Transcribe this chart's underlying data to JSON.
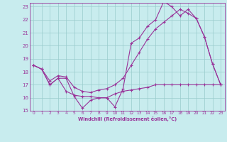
{
  "xlabel": "Windchill (Refroidissement éolien,°C)",
  "bg_color": "#c8ecee",
  "line_color": "#993399",
  "grid_color": "#99cccc",
  "xmin": 0,
  "xmax": 23,
  "ymin": 15,
  "ymax": 23,
  "line1_x": [
    0,
    1,
    2,
    3,
    4,
    5,
    6,
    7,
    8,
    9,
    10,
    11,
    12,
    13,
    14,
    15,
    16,
    17,
    18,
    19,
    20,
    21,
    22,
    23
  ],
  "line1_y": [
    18.5,
    18.2,
    17.0,
    17.5,
    17.5,
    16.1,
    15.2,
    15.8,
    16.0,
    16.0,
    15.3,
    16.7,
    20.2,
    20.6,
    21.5,
    22.0,
    23.4,
    23.0,
    22.3,
    22.8,
    22.1,
    20.7,
    18.6,
    17.0
  ],
  "line2_x": [
    0,
    1,
    2,
    3,
    4,
    5,
    6,
    7,
    8,
    9,
    10,
    11,
    12,
    13,
    14,
    15,
    16,
    17,
    18,
    19,
    20,
    21,
    22,
    23
  ],
  "line2_y": [
    18.5,
    18.2,
    17.3,
    17.7,
    17.6,
    16.8,
    16.5,
    16.4,
    16.6,
    16.7,
    17.0,
    17.5,
    18.5,
    19.5,
    20.5,
    21.3,
    21.8,
    22.3,
    22.8,
    22.5,
    22.1,
    20.7,
    18.6,
    17.0
  ],
  "line3_x": [
    0,
    1,
    2,
    3,
    4,
    5,
    6,
    7,
    8,
    9,
    10,
    11,
    12,
    13,
    14,
    15,
    16,
    17,
    18,
    19,
    20,
    21,
    22,
    23
  ],
  "line3_y": [
    18.5,
    18.2,
    17.0,
    17.5,
    16.5,
    16.2,
    16.1,
    16.1,
    16.0,
    16.0,
    16.3,
    16.5,
    16.6,
    16.7,
    16.8,
    17.0,
    17.0,
    17.0,
    17.0,
    17.0,
    17.0,
    17.0,
    17.0,
    17.0
  ]
}
